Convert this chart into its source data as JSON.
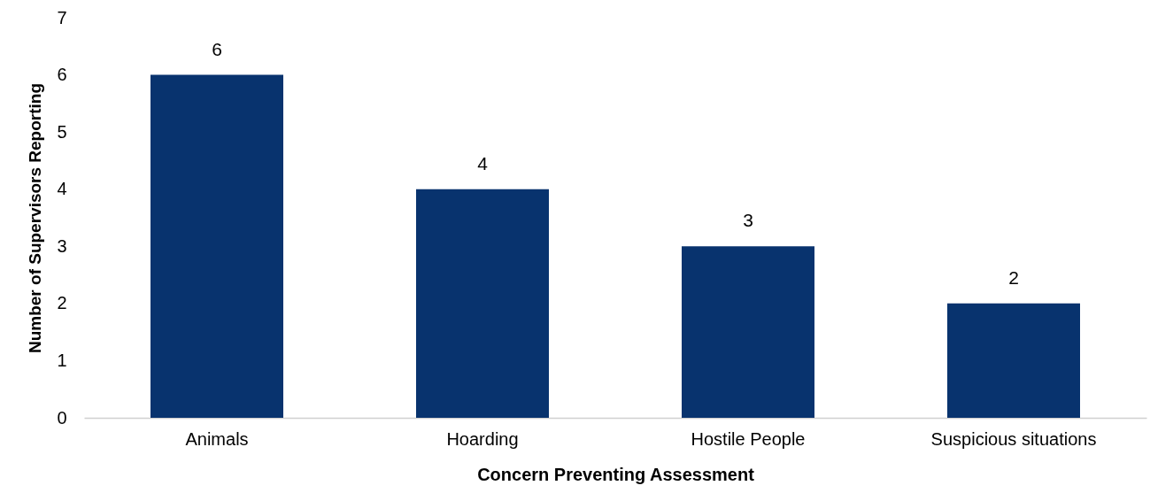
{
  "chart_data": {
    "type": "bar",
    "xlabel": "Concern Preventing Assessment",
    "ylabel": "Number of Supervisors Reporting",
    "categories": [
      "Animals",
      "Hoarding",
      "Hostile People",
      "Suspicious situations"
    ],
    "values": [
      6,
      4,
      3,
      2
    ],
    "color": "#08336e",
    "ylim": [
      0,
      7
    ],
    "yticks": [
      0,
      1,
      2,
      3,
      4,
      5,
      6,
      7
    ],
    "grid": false,
    "data_labels": true
  }
}
